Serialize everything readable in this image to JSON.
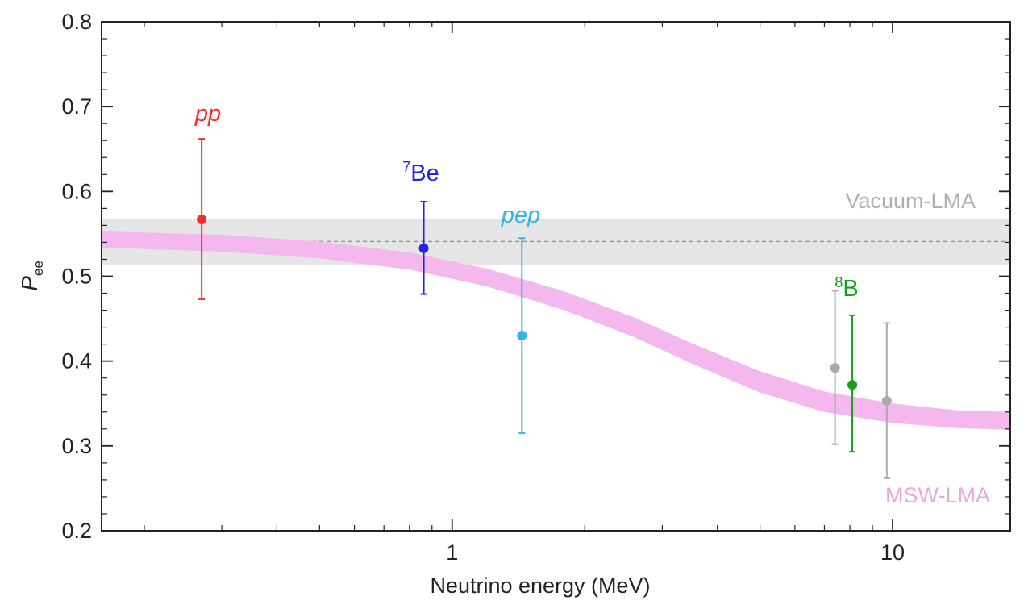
{
  "chart_data": {
    "type": "scatter",
    "xlabel": "Neutrino energy (MeV)",
    "ylabel": "P",
    "ylabel_sub": "ee",
    "x_scale": "log",
    "xlim": [
      0.16,
      18.5
    ],
    "ylim": [
      0.2,
      0.8
    ],
    "x_tick_labels": [
      "1",
      "10"
    ],
    "y_tick_labels": [
      "0.2",
      "0.3",
      "0.4",
      "0.5",
      "0.6",
      "0.7",
      "0.8"
    ],
    "y_ticks": [
      0.2,
      0.3,
      0.4,
      0.5,
      0.6,
      0.7,
      0.8
    ],
    "x_ticks": [
      1,
      10
    ],
    "grid": false,
    "bands": [
      {
        "name": "Vacuum-LMA",
        "color": "#e6e6e6",
        "line_color": "#9a9a9a",
        "center": 0.541,
        "lower": 0.513,
        "upper": 0.567
      },
      {
        "name": "MSW-LMA",
        "color": "#f4b7ee",
        "label_color": "#e9a6e2",
        "curve": [
          {
            "x": 0.16,
            "lower": 0.534,
            "upper": 0.553
          },
          {
            "x": 0.3,
            "lower": 0.529,
            "upper": 0.549
          },
          {
            "x": 0.5,
            "lower": 0.521,
            "upper": 0.541
          },
          {
            "x": 0.8,
            "lower": 0.508,
            "upper": 0.528
          },
          {
            "x": 1.2,
            "lower": 0.488,
            "upper": 0.509
          },
          {
            "x": 1.8,
            "lower": 0.46,
            "upper": 0.482
          },
          {
            "x": 2.6,
            "lower": 0.428,
            "upper": 0.451
          },
          {
            "x": 3.5,
            "lower": 0.397,
            "upper": 0.421
          },
          {
            "x": 5.0,
            "lower": 0.363,
            "upper": 0.388
          },
          {
            "x": 7.0,
            "lower": 0.34,
            "upper": 0.364
          },
          {
            "x": 10.0,
            "lower": 0.327,
            "upper": 0.35
          },
          {
            "x": 14.0,
            "lower": 0.321,
            "upper": 0.342
          },
          {
            "x": 18.5,
            "lower": 0.319,
            "upper": 0.34
          }
        ]
      }
    ],
    "series": [
      {
        "name": "pp",
        "color": "#ff2a2a",
        "x": 0.27,
        "y": 0.567,
        "err_low": 0.473,
        "err_high": 0.662
      },
      {
        "name": "7Be",
        "color": "#2323e6",
        "x": 0.862,
        "y": 0.533,
        "err_low": 0.479,
        "err_high": 0.588
      },
      {
        "name": "pep",
        "color": "#33b5e5",
        "x": 1.44,
        "y": 0.43,
        "err_low": 0.315,
        "err_high": 0.545
      },
      {
        "name": "8B",
        "color": "#1a9e1a",
        "x": 8.1,
        "y": 0.372,
        "err_low": 0.293,
        "err_high": 0.454
      }
    ],
    "extra_points": [
      {
        "color": "#aaaaaa",
        "x": 7.4,
        "y": 0.392,
        "err_low": 0.302,
        "err_high": 0.483
      },
      {
        "color": "#aaaaaa",
        "x": 9.7,
        "y": 0.353,
        "err_low": 0.262,
        "err_high": 0.445
      }
    ],
    "point_labels": [
      {
        "text": "pp",
        "italic": true,
        "color": "#ff2a2a"
      },
      {
        "text": "Be",
        "sup": "7",
        "italic": false,
        "color": "#2323e6"
      },
      {
        "text": "pep",
        "italic": true,
        "color": "#33b5e5"
      },
      {
        "text": "B",
        "sup": "8",
        "italic": false,
        "color": "#1a9e1a"
      }
    ]
  }
}
